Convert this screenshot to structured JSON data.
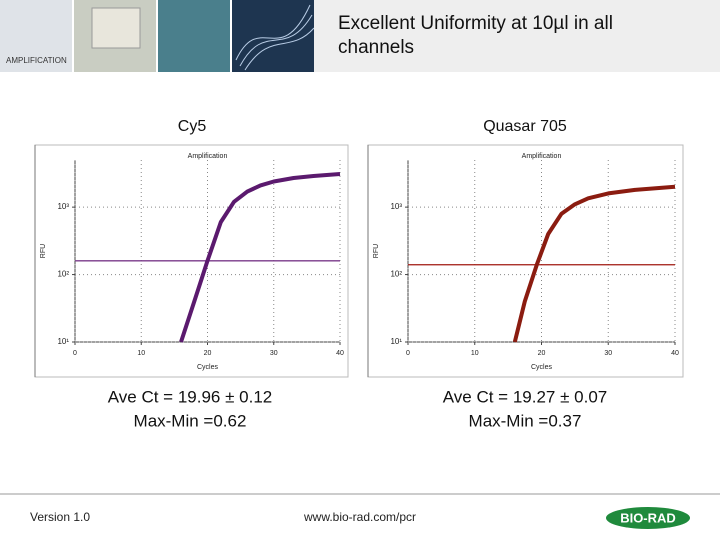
{
  "header": {
    "section": "AMPLIFICATION",
    "title": "Excellent Uniformity at 10µl in all channels"
  },
  "chart_data": [
    {
      "type": "line",
      "label": "Cy5",
      "title": "Amplification",
      "x_label": "Cycles",
      "y_label": "RFU",
      "x": [
        16,
        18,
        20,
        22,
        24,
        26,
        28,
        30,
        33,
        36,
        40
      ],
      "series": [
        {
          "color": "#5b1a6e",
          "values": [
            10,
            40,
            160,
            600,
            1200,
            1700,
            2100,
            2400,
            2700,
            2900,
            3100
          ]
        }
      ],
      "threshold": 160,
      "threshold_color": "#7a3a8a",
      "xlim": [
        0,
        40
      ],
      "xticks": [
        0,
        10,
        20,
        30,
        40
      ],
      "ylim": [
        10,
        5000
      ],
      "log_y": true,
      "yticks": [
        {
          "value": 10,
          "label": "10¹"
        },
        {
          "value": 100,
          "label": "10²"
        },
        {
          "value": 1000,
          "label": "10³"
        }
      ],
      "grid": true,
      "stats": [
        "Ave Ct = 19.96 ± 0.12",
        "Max-Min =0.62"
      ]
    },
    {
      "type": "line",
      "label": "Quasar 705",
      "title": "Amplification",
      "x_label": "Cycles",
      "y_label": "RFU",
      "x": [
        16,
        17.5,
        19.3,
        21,
        23,
        25,
        27,
        30,
        34,
        40
      ],
      "series": [
        {
          "color": "#8b1c10",
          "values": [
            10,
            40,
            140,
            400,
            800,
            1100,
            1350,
            1600,
            1800,
            2000
          ]
        }
      ],
      "threshold": 140,
      "threshold_color": "#a01810",
      "xlim": [
        0,
        40
      ],
      "xticks": [
        0,
        10,
        20,
        30,
        40
      ],
      "ylim": [
        10,
        5000
      ],
      "log_y": true,
      "yticks": [
        {
          "value": 10,
          "label": "10¹"
        },
        {
          "value": 100,
          "label": "10²"
        },
        {
          "value": 1000,
          "label": "10³"
        }
      ],
      "grid": true,
      "stats": [
        "Ave Ct = 19.27 ± 0.07",
        "Max-Min =0.37"
      ]
    }
  ],
  "footer": {
    "version": "Version 1.0",
    "url": "www.bio-rad.com/pcr",
    "logo": "BIO-RAD"
  }
}
